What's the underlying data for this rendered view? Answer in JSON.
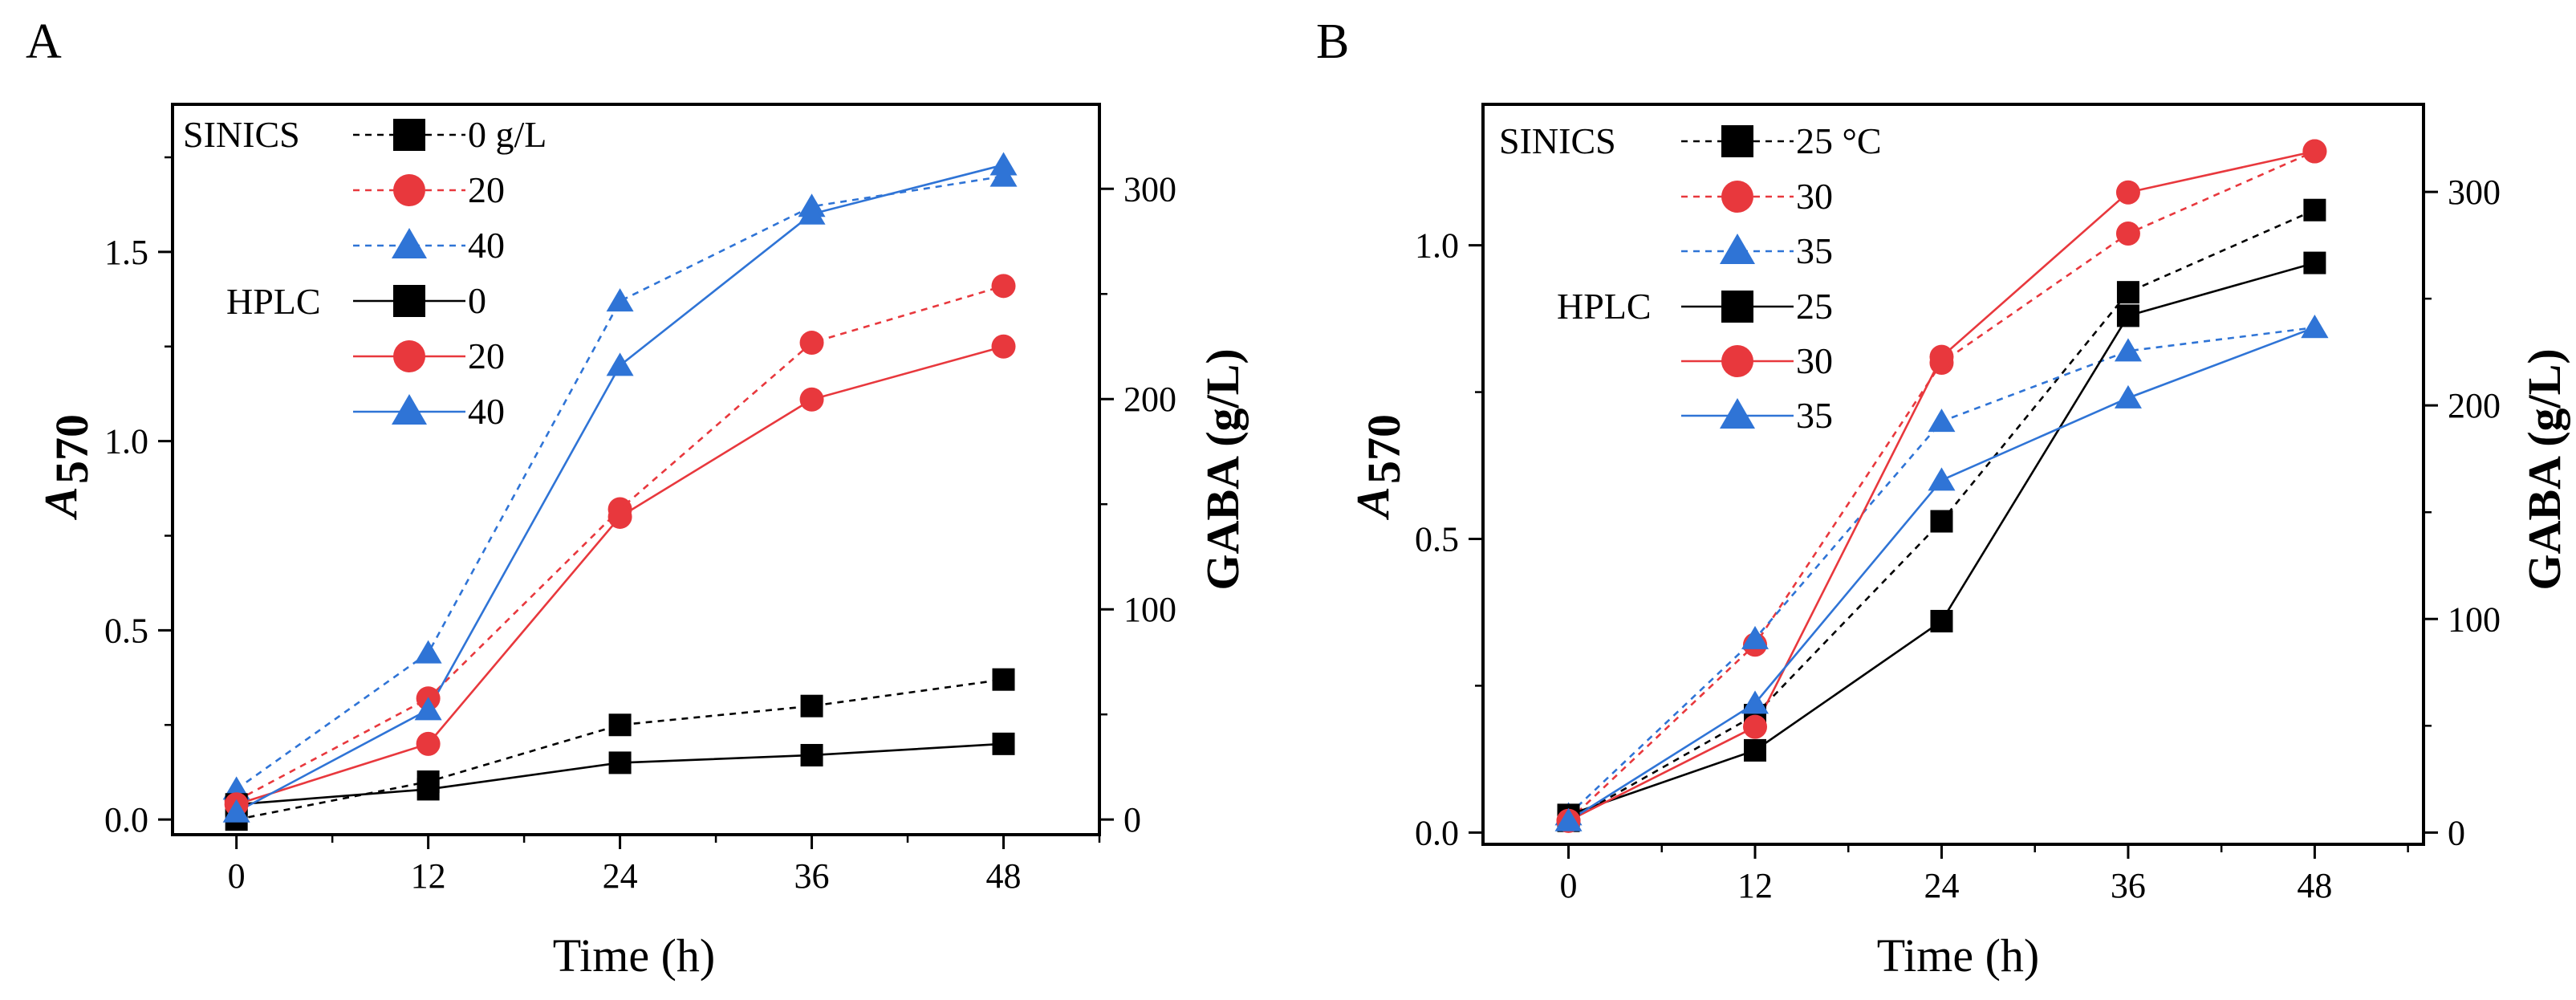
{
  "chart_data": [
    {
      "type": "line",
      "panel_label": "A",
      "xlabel": "Time (h)",
      "ylabel_left_main": "A",
      "ylabel_left_sub": "570",
      "ylabel_right": "GABA (g/L)",
      "x": [
        0,
        12,
        24,
        36,
        48
      ],
      "x_ticks": [
        "0",
        "12",
        "24",
        "36",
        "48"
      ],
      "xlim": [
        -4,
        54
      ],
      "ylim_left": [
        -0.04,
        1.89
      ],
      "ylim_right": [
        -7.2,
        340.2
      ],
      "y_ticks_left": [
        "0.0",
        "0.5",
        "1.0",
        "1.5"
      ],
      "y_tick_values_left": [
        0,
        0.5,
        1.0,
        1.5
      ],
      "y_ticks_right": [
        "0",
        "100",
        "200",
        "300"
      ],
      "y_tick_values_right": [
        0,
        100,
        200,
        300
      ],
      "legend": {
        "groups": [
          {
            "label": "SINICS",
            "style": "dashed",
            "entries": [
              "0  g/L",
              "20",
              "40"
            ]
          },
          {
            "label": "HPLC",
            "style": "solid",
            "entries": [
              "0",
              "20",
              "40"
            ]
          }
        ]
      },
      "series": [
        {
          "name": "SINICS 0 g/L",
          "group": "SINICS",
          "style": "dashed",
          "marker": "square",
          "color": "#000000",
          "axis": "left",
          "values": [
            0.0,
            0.1,
            0.25,
            0.3,
            0.37
          ]
        },
        {
          "name": "SINICS 20",
          "group": "SINICS",
          "style": "dashed",
          "marker": "circle",
          "color": "#e8383d",
          "axis": "left",
          "values": [
            0.05,
            0.32,
            0.82,
            1.26,
            1.41
          ]
        },
        {
          "name": "SINICS 40",
          "group": "SINICS",
          "style": "dashed",
          "marker": "triangle",
          "color": "#2f74d6",
          "axis": "left",
          "values": [
            0.08,
            0.44,
            1.37,
            1.62,
            1.7
          ]
        },
        {
          "name": "HPLC 0",
          "group": "HPLC",
          "style": "solid",
          "marker": "square",
          "color": "#000000",
          "axis": "left",
          "values": [
            0.04,
            0.08,
            0.15,
            0.17,
            0.2
          ]
        },
        {
          "name": "HPLC 20",
          "group": "HPLC",
          "style": "solid",
          "marker": "circle",
          "color": "#e8383d",
          "axis": "left",
          "values": [
            0.04,
            0.2,
            0.8,
            1.11,
            1.25
          ]
        },
        {
          "name": "HPLC 40",
          "group": "HPLC",
          "style": "solid",
          "marker": "triangle",
          "color": "#2f74d6",
          "axis": "left",
          "values": [
            0.02,
            0.29,
            1.2,
            1.6,
            1.73
          ]
        }
      ]
    },
    {
      "type": "line",
      "panel_label": "B",
      "xlabel": "Time (h)",
      "ylabel_left_main": "A",
      "ylabel_left_sub": "570",
      "ylabel_right": "GABA (g/L)",
      "x": [
        0,
        12,
        24,
        36,
        48
      ],
      "x_ticks": [
        "0",
        "12",
        "24",
        "36",
        "48"
      ],
      "xlim": [
        -5.5,
        55
      ],
      "ylim_left": [
        -0.02,
        1.24
      ],
      "ylim_right": [
        -5.5,
        341.0
      ],
      "y_ticks_left": [
        "0.0",
        "0.5",
        "1.0"
      ],
      "y_tick_values_left": [
        0,
        0.5,
        1.0
      ],
      "y_ticks_right": [
        "0",
        "100",
        "200",
        "300"
      ],
      "y_tick_values_right": [
        0,
        100,
        200,
        300
      ],
      "legend": {
        "groups": [
          {
            "label": "SINICS",
            "style": "dashed",
            "entries": [
              "25 °C",
              "30",
              "35"
            ]
          },
          {
            "label": "HPLC",
            "style": "solid",
            "entries": [
              "25",
              "30",
              "35"
            ]
          }
        ]
      },
      "series": [
        {
          "name": "SINICS 25 °C",
          "group": "SINICS",
          "style": "dashed",
          "marker": "square",
          "color": "#000000",
          "axis": "left",
          "values": [
            0.02,
            0.2,
            0.53,
            0.92,
            1.06
          ]
        },
        {
          "name": "SINICS 30",
          "group": "SINICS",
          "style": "dashed",
          "marker": "circle",
          "color": "#e8383d",
          "axis": "left",
          "values": [
            0.02,
            0.32,
            0.8,
            1.02,
            1.16
          ]
        },
        {
          "name": "SINICS 35",
          "group": "SINICS",
          "style": "dashed",
          "marker": "triangle",
          "color": "#2f74d6",
          "axis": "left",
          "values": [
            0.03,
            0.33,
            0.7,
            0.82,
            0.86
          ]
        },
        {
          "name": "HPLC 25",
          "group": "HPLC",
          "style": "solid",
          "marker": "square",
          "color": "#000000",
          "axis": "left",
          "values": [
            0.03,
            0.14,
            0.36,
            0.88,
            0.97
          ]
        },
        {
          "name": "HPLC 30",
          "group": "HPLC",
          "style": "solid",
          "marker": "circle",
          "color": "#e8383d",
          "axis": "left",
          "values": [
            0.02,
            0.18,
            0.81,
            1.09,
            1.16
          ]
        },
        {
          "name": "HPLC 35",
          "group": "HPLC",
          "style": "solid",
          "marker": "triangle",
          "color": "#2f74d6",
          "axis": "left",
          "values": [
            0.02,
            0.22,
            0.6,
            0.74,
            0.86
          ]
        }
      ]
    }
  ]
}
